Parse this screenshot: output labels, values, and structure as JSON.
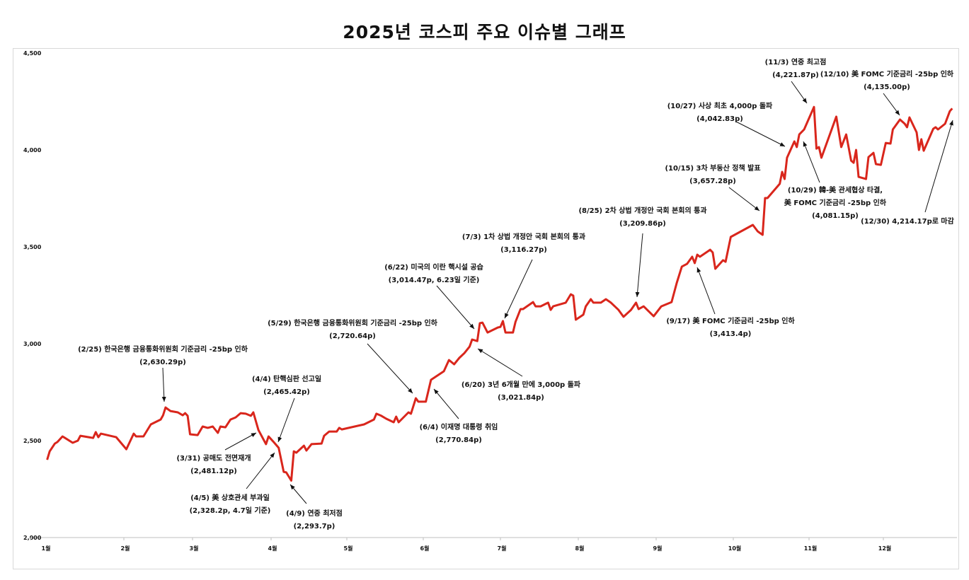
{
  "chart_data": {
    "type": "line",
    "title": "2025년  코스피 주요 이슈별 그래프",
    "xlabel": "",
    "ylabel": "",
    "ylim": [
      2000,
      4500
    ],
    "yticks": [
      "2,000",
      "2,500",
      "3,000",
      "3,500",
      "4,000",
      "4,500"
    ],
    "ytick_values": [
      2000,
      2500,
      3000,
      3500,
      4000,
      4500
    ],
    "xticks": [
      "1월",
      "2월",
      "3월",
      "4월",
      "5월",
      "6월",
      "7월",
      "8월",
      "9월",
      "10월",
      "11월",
      "12월"
    ],
    "grid": false,
    "line_color": "#d9261c",
    "series": [
      {
        "x": [
          "2025-01-02",
          "2025-01-03",
          "2025-01-05",
          "2025-01-06",
          "2025-01-08",
          "2025-01-09",
          "2025-01-12",
          "2025-01-14",
          "2025-01-15",
          "2025-01-20",
          "2025-01-21",
          "2025-01-22",
          "2025-01-23",
          "2025-01-29",
          "2025-02-02",
          "2025-02-05",
          "2025-02-06",
          "2025-02-09",
          "2025-02-12",
          "2025-02-16",
          "2025-02-17",
          "2025-02-18",
          "2025-02-20",
          "2025-02-23",
          "2025-02-25",
          "2025-02-26",
          "2025-02-27",
          "2025-02-28",
          "2025-03-03",
          "2025-03-05",
          "2025-03-07",
          "2025-03-09",
          "2025-03-11",
          "2025-03-12",
          "2025-03-14",
          "2025-03-16",
          "2025-03-18",
          "2025-03-20",
          "2025-03-22",
          "2025-03-24",
          "2025-03-25",
          "2025-03-27",
          "2025-03-30",
          "2025-03-31",
          "2025-04-02",
          "2025-04-04",
          "2025-04-06",
          "2025-04-07",
          "2025-04-09",
          "2025-04-10",
          "2025-04-11",
          "2025-04-14",
          "2025-04-15",
          "2025-04-17",
          "2025-04-21",
          "2025-04-22",
          "2025-04-24",
          "2025-04-27",
          "2025-04-28",
          "2025-04-29",
          "2025-05-08",
          "2025-05-12",
          "2025-05-13",
          "2025-05-15",
          "2025-05-17",
          "2025-05-20",
          "2025-05-21",
          "2025-05-22",
          "2025-05-26",
          "2025-05-27",
          "2025-05-29",
          "2025-05-30",
          "2025-06-02",
          "2025-06-04",
          "2025-06-09",
          "2025-06-11",
          "2025-06-13",
          "2025-06-15",
          "2025-06-17",
          "2025-06-19",
          "2025-06-20",
          "2025-06-22",
          "2025-06-23",
          "2025-06-24",
          "2025-06-26",
          "2025-06-30",
          "2025-07-01",
          "2025-07-02",
          "2025-07-03",
          "2025-07-06",
          "2025-07-07",
          "2025-07-09",
          "2025-07-10",
          "2025-07-14",
          "2025-07-15",
          "2025-07-17",
          "2025-07-20",
          "2025-07-21",
          "2025-07-22",
          "2025-07-27",
          "2025-07-29",
          "2025-07-30",
          "2025-07-31",
          "2025-08-03",
          "2025-08-04",
          "2025-08-06",
          "2025-08-07",
          "2025-08-10",
          "2025-08-12",
          "2025-08-14",
          "2025-08-17",
          "2025-08-19",
          "2025-08-22",
          "2025-08-24",
          "2025-08-25",
          "2025-08-27",
          "2025-08-31",
          "2025-09-03",
          "2025-09-07",
          "2025-09-09",
          "2025-09-11",
          "2025-09-13",
          "2025-09-15",
          "2025-09-16",
          "2025-09-17",
          "2025-09-18",
          "2025-09-22",
          "2025-09-23",
          "2025-09-24",
          "2025-09-27",
          "2025-09-28",
          "2025-09-30",
          "2025-10-09",
          "2025-10-11",
          "2025-10-13",
          "2025-10-14",
          "2025-10-15",
          "2025-10-20",
          "2025-10-21",
          "2025-10-22",
          "2025-10-23",
          "2025-10-26",
          "2025-10-27",
          "2025-10-28",
          "2025-10-30",
          "2025-11-03",
          "2025-11-04",
          "2025-11-05",
          "2025-11-06",
          "2025-11-12",
          "2025-11-14",
          "2025-11-16",
          "2025-11-18",
          "2025-11-19",
          "2025-11-20",
          "2025-11-21",
          "2025-11-24",
          "2025-11-25",
          "2025-11-27",
          "2025-11-28",
          "2025-11-30",
          "2025-12-02",
          "2025-12-04",
          "2025-12-05",
          "2025-12-08",
          "2025-12-10",
          "2025-12-11",
          "2025-12-12",
          "2025-12-15",
          "2025-12-16",
          "2025-12-17",
          "2025-12-18",
          "2025-12-22",
          "2025-12-23",
          "2025-12-24",
          "2025-12-27",
          "2025-12-29",
          "2025-12-30"
        ],
        "y": [
          2401,
          2445,
          2485,
          2493,
          2522,
          2514,
          2489,
          2500,
          2525,
          2514,
          2544,
          2518,
          2536,
          2518,
          2456,
          2536,
          2522,
          2522,
          2584,
          2609,
          2631,
          2671,
          2653,
          2646,
          2631,
          2642,
          2628,
          2533,
          2529,
          2573,
          2566,
          2573,
          2540,
          2573,
          2569,
          2609,
          2620,
          2642,
          2639,
          2628,
          2646,
          2555,
          2482,
          2522,
          2493,
          2463,
          2339,
          2336,
          2293.7,
          2445,
          2438,
          2474,
          2449,
          2482,
          2485,
          2525,
          2547,
          2547,
          2566,
          2558,
          2584,
          2609,
          2639,
          2628,
          2613,
          2595,
          2624,
          2595,
          2646,
          2639,
          2719,
          2701,
          2701,
          2814,
          2858,
          2916,
          2894,
          2927,
          2952,
          2985,
          3022,
          3014,
          3106,
          3109,
          3058,
          3084,
          3087,
          3117,
          3058,
          3058,
          3113,
          3179,
          3179,
          3215,
          3193,
          3193,
          3212,
          3175,
          3193,
          3212,
          3255,
          3248,
          3124,
          3150,
          3193,
          3230,
          3212,
          3212,
          3230,
          3212,
          3175,
          3139,
          3175,
          3212,
          3179,
          3193,
          3142,
          3193,
          3215,
          3314,
          3398,
          3412,
          3449,
          3416,
          3460,
          3449,
          3485,
          3471,
          3387,
          3431,
          3423,
          3551,
          3613,
          3580,
          3562,
          3752,
          3752,
          3825,
          3887,
          3850,
          3960,
          4044,
          4015,
          4080,
          4106,
          4221.87,
          4007,
          4015,
          3960,
          4172,
          4015,
          4080,
          3945,
          3934,
          4000,
          3861,
          3850,
          3963,
          3985,
          3927,
          3923,
          4036,
          4033,
          4106,
          4157,
          4135,
          4117,
          4168,
          4091,
          4000,
          4055,
          3996,
          4109,
          4117,
          4106,
          4135,
          4200,
          4214.17
        ]
      }
    ],
    "annotations": [
      {
        "lines": [
          "(2/25) 한국은행 금융통화위원회 기준금리 -25bp 인하",
          "(2,630.29p)"
        ],
        "color": "#111111"
      },
      {
        "lines": [
          "(4/4) 탄핵심판 선고일",
          "(2,465.42p)"
        ],
        "color": "#111111"
      },
      {
        "lines": [
          "(3/31) 공매도 전면재개",
          "(2,481.12p)"
        ],
        "color": "#111111"
      },
      {
        "lines": [
          "(4/5) 美 상호관세 부과일",
          "(2,328.2p, 4.7일 기준)"
        ],
        "color": "#111111"
      },
      {
        "lines": [
          "(4/9) 연중 최저점",
          "(2,293.7p)"
        ],
        "color": "#2b2bb8"
      },
      {
        "lines": [
          "(5/29) 한국은행 금융통화위원회 기준금리 -25bp 인하",
          "(2,720.64p)"
        ],
        "color": "#111111"
      },
      {
        "lines": [
          "(6/22) 미국의 이란 핵시설 공습",
          "(3,014.47p, 6.23일 기준)"
        ],
        "color": "#111111"
      },
      {
        "lines": [
          "(7/3) 1차 상법 개정안 국회 본회의 통과",
          "(3,116.27p)"
        ],
        "color": "#111111"
      },
      {
        "lines": [
          "(6/20) 3년 6개월 만에 3,000p 돌파",
          "(3,021.84p)"
        ],
        "color": "#111111"
      },
      {
        "lines": [
          "(6/4) 이재명 대통령 취임",
          "(2,770.84p)"
        ],
        "color": "#111111"
      },
      {
        "lines": [
          "(8/25) 2차 상법 개정안 국회 본회의 통과",
          "(3,209.86p)"
        ],
        "color": "#111111"
      },
      {
        "lines": [
          "(9/17) 美 FOMC 기준금리 -25bp 인하",
          "(3,413.4p)"
        ],
        "color": "#111111"
      },
      {
        "lines": [
          "(10/15) 3차 부동산 정책 발표",
          "(3,657.28p)"
        ],
        "color": "#111111"
      },
      {
        "lines": [
          "(10/27) 사상 최초 4,000p 돌파",
          "(4,042.83p)"
        ],
        "color": "#111111"
      },
      {
        "lines": [
          "(11/3) 연중 최고점",
          "(4,221.87p)"
        ],
        "color": "#e0241b"
      },
      {
        "lines": [
          "(12/10) 美 FOMC 기준금리 -25bp 인하",
          "(4,135.00p)"
        ],
        "color": "#111111"
      },
      {
        "lines": [
          "(10/29) 韓-美 관세협상 타결,",
          "美 FOMC 기준금리 -25bp 인하",
          "(4,081.15p)"
        ],
        "color": "#111111"
      },
      {
        "lines": [
          "(12/30) 4,214.17p로 마감"
        ],
        "color": "#111111"
      }
    ]
  }
}
